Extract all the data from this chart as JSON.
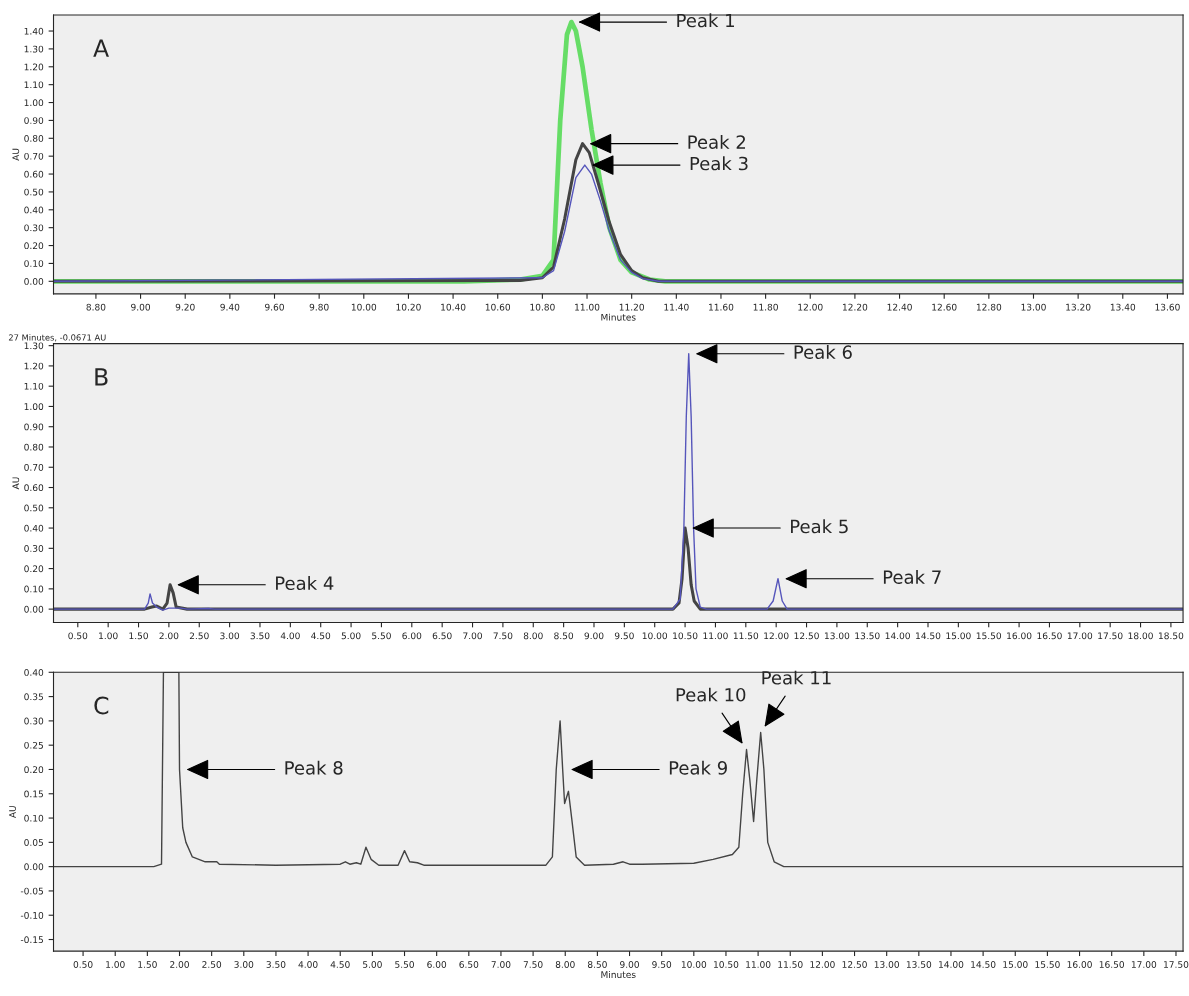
{
  "chart_data": [
    {
      "type": "line",
      "xlabel": "Minutes",
      "ylabel": "AU",
      "xlim": [
        8.61,
        13.67
      ],
      "ylim": [
        -0.07,
        1.49
      ],
      "xticks": [
        {
          "value": 8.8,
          "label": "8.80"
        },
        {
          "value": 9.0,
          "label": "9.00"
        },
        {
          "value": 9.2,
          "label": "9.20"
        },
        {
          "value": 9.4,
          "label": "9.40"
        },
        {
          "value": 9.6,
          "label": "9.60"
        },
        {
          "value": 9.8,
          "label": "9.80"
        },
        {
          "value": 10.0,
          "label": "10.00"
        },
        {
          "value": 10.2,
          "label": "10.20"
        },
        {
          "value": 10.4,
          "label": "10.40"
        },
        {
          "value": 10.6,
          "label": "10.60"
        },
        {
          "value": 10.8,
          "label": "10.80"
        },
        {
          "value": 11.0,
          "label": "11.00"
        },
        {
          "value": 11.2,
          "label": "11.20"
        },
        {
          "value": 11.4,
          "label": "11.40"
        },
        {
          "value": 11.6,
          "label": "11.60"
        },
        {
          "value": 11.8,
          "label": "11.80"
        },
        {
          "value": 12.0,
          "label": "12.00"
        },
        {
          "value": 12.2,
          "label": "12.20"
        },
        {
          "value": 12.4,
          "label": "12.40"
        },
        {
          "value": 12.6,
          "label": "12.60"
        },
        {
          "value": 12.8,
          "label": "12.80"
        },
        {
          "value": 13.0,
          "label": "13.00"
        },
        {
          "value": 13.2,
          "label": "13.20"
        },
        {
          "value": 13.4,
          "label": "13.40"
        },
        {
          "value": 13.6,
          "label": "13.60"
        }
      ],
      "yticks": [
        {
          "value": 0,
          "label": "0.00"
        },
        {
          "value": 0.1,
          "label": "0.10"
        },
        {
          "value": 0.2,
          "label": "0.20"
        },
        {
          "value": 0.3,
          "label": "0.30"
        },
        {
          "value": 0.4,
          "label": "0.40"
        },
        {
          "value": 0.5,
          "label": "0.50"
        },
        {
          "value": 0.6,
          "label": "0.60"
        },
        {
          "value": 0.7,
          "label": "0.70"
        },
        {
          "value": 0.8,
          "label": "0.80"
        },
        {
          "value": 0.9,
          "label": "0.90"
        },
        {
          "value": 1.0,
          "label": "1.00"
        },
        {
          "value": 1.1,
          "label": "1.10"
        },
        {
          "value": 1.2,
          "label": "1.20"
        },
        {
          "value": 1.3,
          "label": "1.30"
        },
        {
          "value": 1.4,
          "label": "1.40"
        }
      ],
      "series": [
        {
          "color": "#66dd66",
          "x": [
            8.61,
            10.45,
            10.7,
            10.8,
            10.85,
            10.88,
            10.91,
            10.93,
            10.95,
            10.98,
            11.02,
            11.06,
            11.1,
            11.15,
            11.2,
            11.28,
            11.35,
            13.67
          ],
          "values": [
            0,
            0,
            0.01,
            0.03,
            0.12,
            0.9,
            1.38,
            1.45,
            1.4,
            1.2,
            0.85,
            0.55,
            0.3,
            0.12,
            0.05,
            0.01,
            0,
            0
          ]
        },
        {
          "color": "#444444",
          "x": [
            8.61,
            10.7,
            10.8,
            10.85,
            10.9,
            10.95,
            10.98,
            11.01,
            11.05,
            11.1,
            11.15,
            11.2,
            11.25,
            11.32,
            13.67
          ],
          "values": [
            0,
            0.005,
            0.02,
            0.08,
            0.35,
            0.68,
            0.77,
            0.72,
            0.55,
            0.33,
            0.15,
            0.06,
            0.02,
            0,
            0
          ]
        },
        {
          "color": "#5555bb",
          "x": [
            8.61,
            10.8,
            10.85,
            10.9,
            10.95,
            10.99,
            11.02,
            11.06,
            11.1,
            11.15,
            11.2,
            11.25,
            11.32,
            13.67
          ],
          "values": [
            0,
            0.02,
            0.06,
            0.28,
            0.58,
            0.65,
            0.6,
            0.45,
            0.28,
            0.12,
            0.05,
            0.015,
            0,
            0
          ]
        }
      ],
      "annotations": [
        "A",
        {
          "text": "Peak 1",
          "x": 10.93,
          "y": 1.45
        },
        {
          "text": "Peak 2",
          "x": 10.98,
          "y": 0.77
        },
        {
          "text": "Peak 3",
          "x": 10.99,
          "y": 0.65
        }
      ]
    },
    {
      "type": "line",
      "ylabel": "AU",
      "xlim": [
        0.1,
        18.7
      ],
      "ylim": [
        -0.066,
        1.31
      ],
      "xticks": [
        {
          "value": 0.5,
          "label": "0.50"
        },
        {
          "value": 1.0,
          "label": "1.00"
        },
        {
          "value": 1.5,
          "label": "1.50"
        },
        {
          "value": 2.0,
          "label": "2.00"
        },
        {
          "value": 2.5,
          "label": "2.50"
        },
        {
          "value": 3.0,
          "label": "3.00"
        },
        {
          "value": 3.5,
          "label": "3.50"
        },
        {
          "value": 4.0,
          "label": "4.00"
        },
        {
          "value": 4.5,
          "label": "4.50"
        },
        {
          "value": 5.0,
          "label": "5.00"
        },
        {
          "value": 5.5,
          "label": "5.50"
        },
        {
          "value": 6.0,
          "label": "6.00"
        },
        {
          "value": 6.5,
          "label": "6.50"
        },
        {
          "value": 7.0,
          "label": "7.00"
        },
        {
          "value": 7.5,
          "label": "7.50"
        },
        {
          "value": 8.0,
          "label": "8.00"
        },
        {
          "value": 8.5,
          "label": "8.50"
        },
        {
          "value": 9.0,
          "label": "9.00"
        },
        {
          "value": 9.5,
          "label": "9.50"
        },
        {
          "value": 10.0,
          "label": "10.00"
        },
        {
          "value": 10.5,
          "label": "10.50"
        },
        {
          "value": 11.0,
          "label": "11.00"
        },
        {
          "value": 11.5,
          "label": "11.50"
        },
        {
          "value": 12.0,
          "label": "12.00"
        },
        {
          "value": 12.5,
          "label": "12.50"
        },
        {
          "value": 13.0,
          "label": "13.00"
        },
        {
          "value": 13.5,
          "label": "13.50"
        },
        {
          "value": 14.0,
          "label": "14.00"
        },
        {
          "value": 14.5,
          "label": "14.50"
        },
        {
          "value": 15.0,
          "label": "15.00"
        },
        {
          "value": 15.5,
          "label": "15.50"
        },
        {
          "value": 16.0,
          "label": "16.00"
        },
        {
          "value": 16.5,
          "label": "16.50"
        },
        {
          "value": 17.0,
          "label": "17.00"
        },
        {
          "value": 17.5,
          "label": "17.50"
        },
        {
          "value": 18.0,
          "label": "18.00"
        },
        {
          "value": 18.5,
          "label": "18.50"
        }
      ],
      "yticks": [
        {
          "value": 0,
          "label": "0.00"
        },
        {
          "value": 0.1,
          "label": "0.10"
        },
        {
          "value": 0.2,
          "label": "0.20"
        },
        {
          "value": 0.3,
          "label": "0.30"
        },
        {
          "value": 0.4,
          "label": "0.40"
        },
        {
          "value": 0.5,
          "label": "0.50"
        },
        {
          "value": 0.6,
          "label": "0.60"
        },
        {
          "value": 0.7,
          "label": "0.70"
        },
        {
          "value": 0.8,
          "label": "0.80"
        },
        {
          "value": 0.9,
          "label": "0.90"
        },
        {
          "value": 1.0,
          "label": "1.00"
        },
        {
          "value": 1.1,
          "label": "1.10"
        },
        {
          "value": 1.2,
          "label": "1.20"
        },
        {
          "value": 1.3,
          "label": "1.30"
        }
      ],
      "series": [
        {
          "color": "#444444",
          "x": [
            0.1,
            1.6,
            1.72,
            1.8,
            1.9,
            1.97,
            2.02,
            2.07,
            2.12,
            2.3,
            10.3,
            10.4,
            10.45,
            10.5,
            10.55,
            10.6,
            10.65,
            10.75,
            18.7
          ],
          "values": [
            0,
            0,
            0.01,
            0.015,
            0,
            0.03,
            0.12,
            0.08,
            0.01,
            0,
            0,
            0.03,
            0.15,
            0.4,
            0.3,
            0.12,
            0.04,
            0,
            0
          ]
        },
        {
          "color": "#5555bb",
          "x": [
            0.1,
            1.6,
            1.66,
            1.69,
            1.73,
            1.8,
            1.9,
            2.0,
            2.2,
            2.3,
            2.65,
            2.75,
            10.3,
            10.42,
            10.48,
            10.52,
            10.56,
            10.6,
            10.64,
            10.68,
            10.75,
            10.85,
            11.85,
            11.95,
            12.03,
            12.1,
            12.18,
            18.7
          ],
          "values": [
            0,
            0,
            0.03,
            0.075,
            0.03,
            0.01,
            -0.005,
            0.005,
            0.005,
            0,
            0.003,
            0,
            0,
            0.05,
            0.4,
            0.95,
            1.26,
            0.95,
            0.4,
            0.1,
            0.01,
            0,
            0,
            0.04,
            0.15,
            0.04,
            0,
            0
          ]
        }
      ],
      "annotations": [
        "B",
        "27 Minutes, -0.0671 AU",
        {
          "text": "Peak 4",
          "x": 2.02,
          "y": 0.12
        },
        {
          "text": "Peak 5",
          "x": 10.5,
          "y": 0.4
        },
        {
          "text": "Peak 6",
          "x": 10.56,
          "y": 1.26
        },
        {
          "text": "Peak 7",
          "x": 12.03,
          "y": 0.15
        }
      ]
    },
    {
      "type": "line",
      "xlabel": "Minutes",
      "ylabel": "AU",
      "xlim": [
        0.04,
        17.61
      ],
      "ylim": [
        -0.174,
        0.4
      ],
      "xticks": [
        {
          "value": 0.5,
          "label": "0.50"
        },
        {
          "value": 1.0,
          "label": "1.00"
        },
        {
          "value": 1.5,
          "label": "1.50"
        },
        {
          "value": 2.0,
          "label": "2.00"
        },
        {
          "value": 2.5,
          "label": "2.50"
        },
        {
          "value": 3.0,
          "label": "3.00"
        },
        {
          "value": 3.5,
          "label": "3.50"
        },
        {
          "value": 4.0,
          "label": "4.00"
        },
        {
          "value": 4.5,
          "label": "4.50"
        },
        {
          "value": 5.0,
          "label": "5.00"
        },
        {
          "value": 5.5,
          "label": "5.50"
        },
        {
          "value": 6.0,
          "label": "6.00"
        },
        {
          "value": 6.5,
          "label": "6.50"
        },
        {
          "value": 7.0,
          "label": "7.00"
        },
        {
          "value": 7.5,
          "label": "7.50"
        },
        {
          "value": 8.0,
          "label": "8.00"
        },
        {
          "value": 8.5,
          "label": "8.50"
        },
        {
          "value": 9.0,
          "label": "9.00"
        },
        {
          "value": 9.5,
          "label": "9.50"
        },
        {
          "value": 10.0,
          "label": "10.00"
        },
        {
          "value": 10.5,
          "label": "10.50"
        },
        {
          "value": 11.0,
          "label": "11.00"
        },
        {
          "value": 11.5,
          "label": "11.50"
        },
        {
          "value": 12.0,
          "label": "12.00"
        },
        {
          "value": 12.5,
          "label": "12.50"
        },
        {
          "value": 13.0,
          "label": "13.00"
        },
        {
          "value": 13.5,
          "label": "13.50"
        },
        {
          "value": 14.0,
          "label": "14.00"
        },
        {
          "value": 14.5,
          "label": "14.50"
        },
        {
          "value": 15.0,
          "label": "15.00"
        },
        {
          "value": 15.5,
          "label": "15.50"
        },
        {
          "value": 16.0,
          "label": "16.00"
        },
        {
          "value": 16.5,
          "label": "16.50"
        },
        {
          "value": 17.0,
          "label": "17.00"
        },
        {
          "value": 17.5,
          "label": "17.50"
        }
      ],
      "yticks": [
        {
          "value": -0.15,
          "label": "-0.15"
        },
        {
          "value": -0.1,
          "label": "-0.10"
        },
        {
          "value": -0.05,
          "label": "-0.05"
        },
        {
          "value": 0,
          "label": "0.00"
        },
        {
          "value": 0.05,
          "label": "0.05"
        },
        {
          "value": 0.1,
          "label": "0.10"
        },
        {
          "value": 0.15,
          "label": "0.15"
        },
        {
          "value": 0.2,
          "label": "0.20"
        },
        {
          "value": 0.25,
          "label": "0.25"
        },
        {
          "value": 0.3,
          "label": "0.30"
        },
        {
          "value": 0.35,
          "label": "0.35"
        },
        {
          "value": 0.4,
          "label": "0.40"
        }
      ],
      "series": [
        {
          "color": "#444444",
          "x": [
            0.04,
            1.6,
            1.72,
            1.75,
            1.99,
            2.0,
            2.05,
            2.1,
            2.2,
            2.4,
            2.58,
            2.62,
            3.5,
            4.5,
            4.58,
            4.65,
            4.75,
            4.82,
            4.9,
            4.98,
            5.1,
            5.4,
            5.5,
            5.58,
            5.7,
            5.8,
            7.7,
            7.8,
            7.86,
            7.92,
            7.96,
            7.99,
            8.05,
            8.1,
            8.17,
            8.3,
            8.75,
            8.9,
            9.0,
            9.2,
            10.0,
            10.3,
            10.6,
            10.7,
            10.76,
            10.82,
            10.87,
            10.93,
            10.98,
            11.04,
            11.09,
            11.15,
            11.25,
            11.4,
            17.61
          ],
          "values": [
            0,
            0,
            0.005,
            0.4,
            0.4,
            0.2,
            0.08,
            0.05,
            0.02,
            0.01,
            0.01,
            0.005,
            0.003,
            0.005,
            0.01,
            0.005,
            0.008,
            0.005,
            0.04,
            0.015,
            0.003,
            0.003,
            0.033,
            0.01,
            0.008,
            0.003,
            0.003,
            0.02,
            0.2,
            0.3,
            0.2,
            0.13,
            0.155,
            0.1,
            0.02,
            0.003,
            0.005,
            0.01,
            0.005,
            0.005,
            0.007,
            0.015,
            0.025,
            0.04,
            0.15,
            0.241,
            0.18,
            0.093,
            0.18,
            0.276,
            0.2,
            0.05,
            0.01,
            0,
            0
          ]
        }
      ],
      "annotations": [
        "C",
        {
          "text": "Peak 8",
          "x": 2.0,
          "y": 0.2
        },
        {
          "text": "Peak 9",
          "x": 7.98,
          "y": 0.2
        },
        {
          "text": "Peak 10",
          "x": 10.82,
          "y": 0.241
        },
        {
          "text": "Peak 11",
          "x": 11.04,
          "y": 0.276
        }
      ]
    }
  ]
}
